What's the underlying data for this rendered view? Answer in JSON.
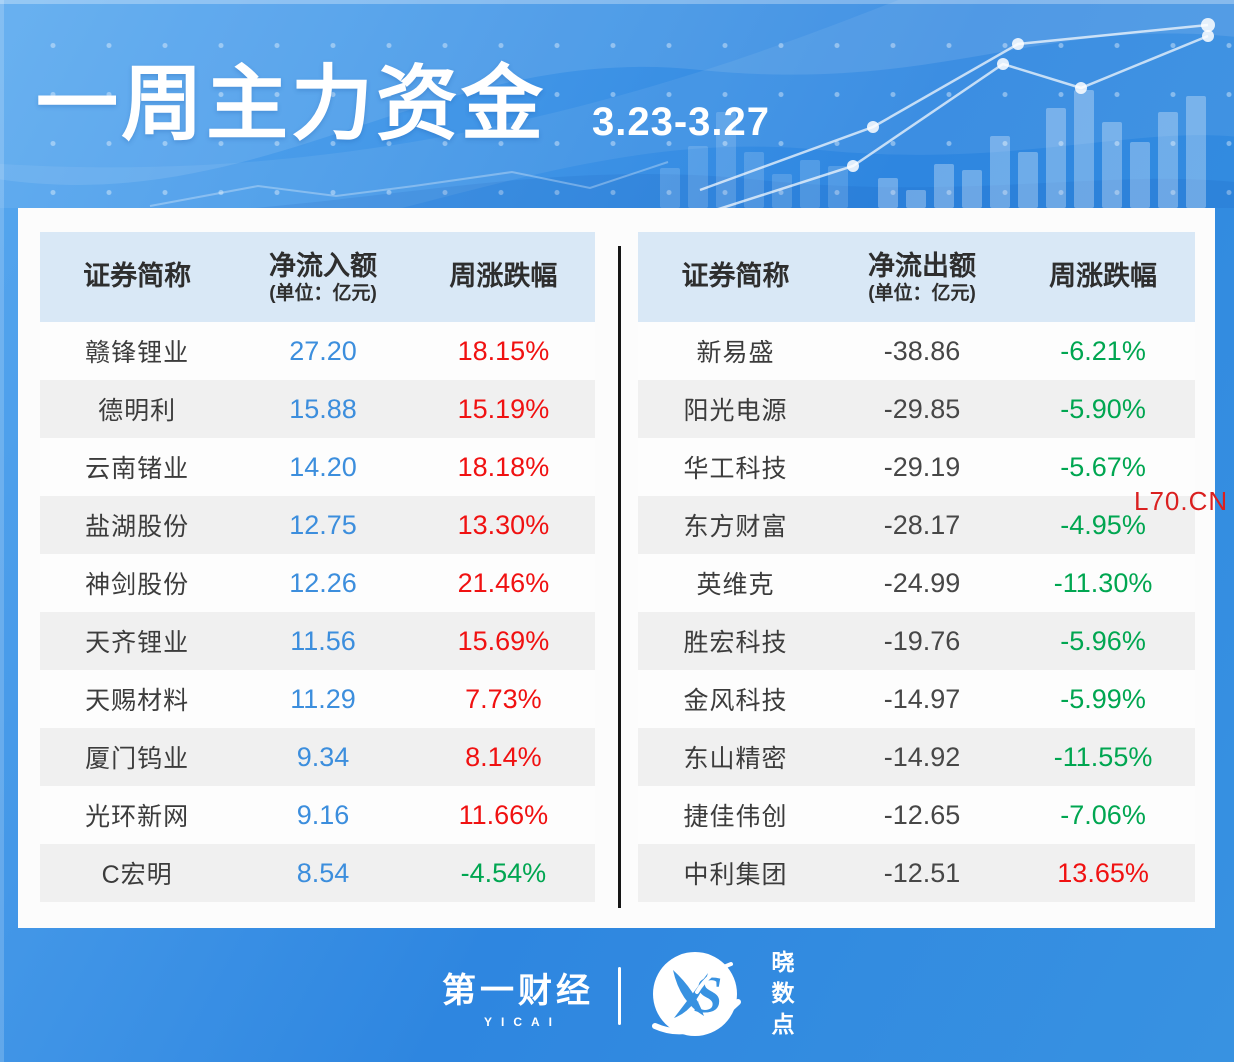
{
  "header": {
    "title": "一周主力资金",
    "date_range": "3.23-3.27"
  },
  "watermark": "L70.CN",
  "chart_data": [
    {
      "type": "table",
      "columns": {
        "name": "证券简称",
        "value": "净流入额",
        "unit": "(单位：亿元)",
        "change": "周涨跌幅"
      },
      "rows": [
        {
          "name": "赣锋锂业",
          "value": "27.20",
          "change": "18.15%"
        },
        {
          "name": "德明利",
          "value": "15.88",
          "change": "15.19%"
        },
        {
          "name": "云南锗业",
          "value": "14.20",
          "change": "18.18%"
        },
        {
          "name": "盐湖股份",
          "value": "12.75",
          "change": "13.30%"
        },
        {
          "name": "神剑股份",
          "value": "12.26",
          "change": "21.46%"
        },
        {
          "name": "天齐锂业",
          "value": "11.56",
          "change": "15.69%"
        },
        {
          "name": "天赐材料",
          "value": "11.29",
          "change": "7.73%"
        },
        {
          "name": "厦门钨业",
          "value": "9.34",
          "change": "8.14%"
        },
        {
          "name": "光环新网",
          "value": "9.16",
          "change": "11.66%"
        },
        {
          "name": "C宏明",
          "value": "8.54",
          "change": "-4.54%"
        }
      ]
    },
    {
      "type": "table",
      "columns": {
        "name": "证券简称",
        "value": "净流出额",
        "unit": "(单位：亿元)",
        "change": "周涨跌幅"
      },
      "rows": [
        {
          "name": "新易盛",
          "value": "-38.86",
          "change": "-6.21%"
        },
        {
          "name": "阳光电源",
          "value": "-29.85",
          "change": "-5.90%"
        },
        {
          "name": "华工科技",
          "value": "-29.19",
          "change": "-5.67%"
        },
        {
          "name": "东方财富",
          "value": "-28.17",
          "change": "-4.95%"
        },
        {
          "name": "英维克",
          "value": "-24.99",
          "change": "-11.30%"
        },
        {
          "name": "胜宏科技",
          "value": "-19.76",
          "change": "-5.96%"
        },
        {
          "name": "金风科技",
          "value": "-14.97",
          "change": "-5.99%"
        },
        {
          "name": "东山精密",
          "value": "-14.92",
          "change": "-11.55%"
        },
        {
          "name": "捷佳伟创",
          "value": "-12.65",
          "change": "-7.06%"
        },
        {
          "name": "中利集团",
          "value": "-12.51",
          "change": "13.65%"
        }
      ]
    }
  ],
  "footer": {
    "brand_cn": "第一财经",
    "brand_en": "YICAI",
    "logo_letters": "S",
    "sub_brand": "晓数点"
  },
  "colors": {
    "background_blue": "#3892e1",
    "header_band": "#d9e8f6",
    "row_alt": "#f0f0f0",
    "inflow_value": "#3c8edd",
    "outflow_value": "#474747",
    "gain_red": "#f01111",
    "loss_green": "#00a651",
    "watermark_red": "#da2020"
  }
}
